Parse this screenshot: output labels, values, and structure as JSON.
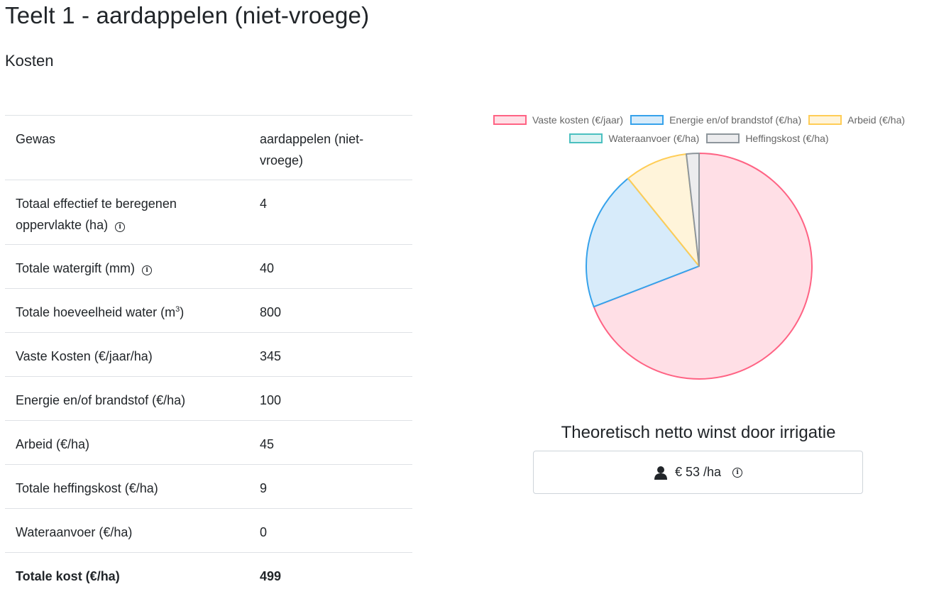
{
  "page": {
    "title": "Teelt 1 - aardappelen (niet-vroege)",
    "section": "Kosten"
  },
  "table": {
    "rows": [
      {
        "label": "Gewas",
        "value": "aardappelen (niet-vroege)"
      },
      {
        "label": "Totaal effectief te beregenen oppervlakte (ha)",
        "value": "4",
        "info": true
      },
      {
        "label": "Totale watergift (mm)",
        "value": "40",
        "info": true
      },
      {
        "label": "Totale hoeveelheid water (m",
        "label_sup": "3",
        "label_tail": ")",
        "value": "800"
      },
      {
        "label": "Vaste Kosten (€/jaar/ha)",
        "value": "345"
      },
      {
        "label": "Energie en/of brandstof (€/ha)",
        "value": "100"
      },
      {
        "label": "Arbeid (€/ha)",
        "value": "45"
      },
      {
        "label": "Totale heffingskost (€/ha)",
        "value": "9"
      },
      {
        "label": "Wateraanvoer (€/ha)",
        "value": "0"
      }
    ],
    "total": {
      "label": "Totale kost (€/ha)",
      "value": "499"
    }
  },
  "chart_data": {
    "type": "pie",
    "categories": [
      "Vaste kosten (€/jaar)",
      "Energie en/of brandstof (€/ha)",
      "Arbeid (€/ha)",
      "Wateraanvoer (€/ha)",
      "Heffingskost (€/ha)"
    ],
    "values": [
      345,
      100,
      45,
      0,
      9
    ],
    "colors": {
      "fill": [
        "#ffdfe6",
        "#d7ebfa",
        "#fff4da",
        "#dbf2f2",
        "#ececee"
      ],
      "stroke": [
        "#ff6384",
        "#36a2eb",
        "#ffcd56",
        "#4bc0c0",
        "#8e969c"
      ]
    },
    "legend": "top"
  },
  "profit": {
    "title": "Theoretisch netto winst door irrigatie",
    "value": "€ 53 /ha"
  }
}
